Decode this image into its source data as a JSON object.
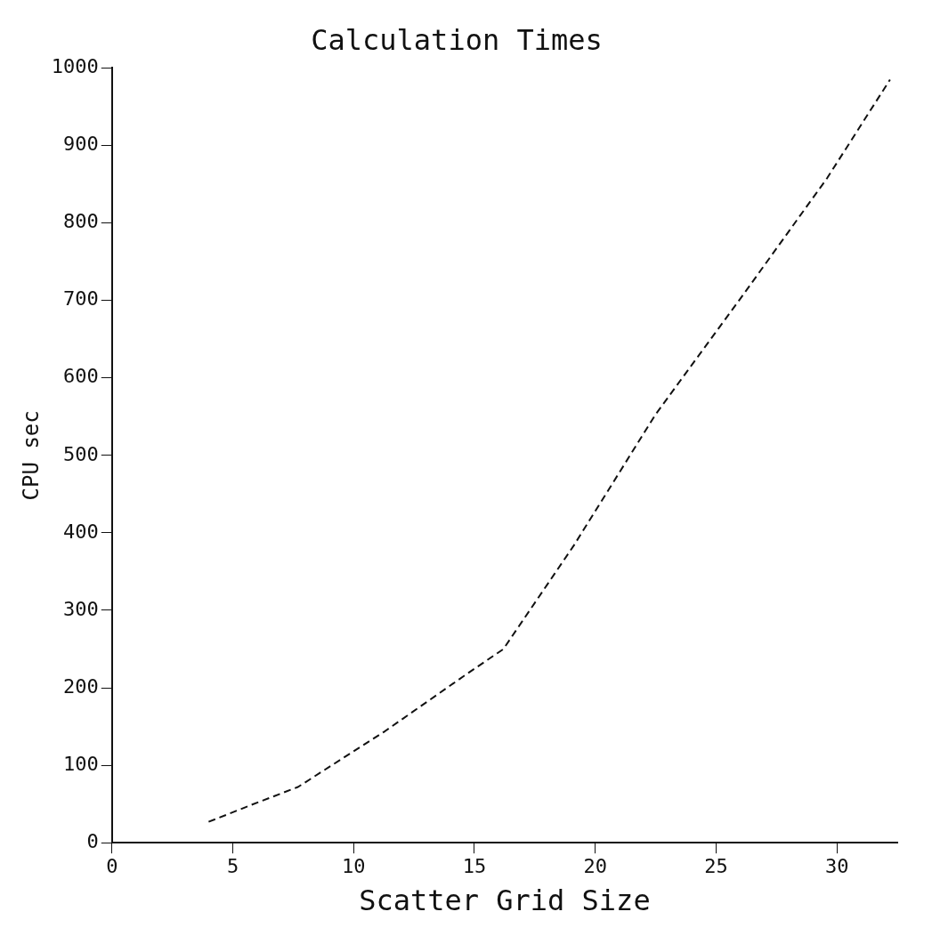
{
  "chart_data": {
    "type": "line",
    "title": "Calculation Times",
    "xlabel": "Scatter Grid Size",
    "ylabel": "CPU sec",
    "series": [
      {
        "color": "#111111",
        "x": [
          4,
          5.7,
          7.7,
          11.3,
          14.6,
          16.2,
          19.1,
          22.5,
          26,
          29.6,
          32.2
        ],
        "values": [
          27,
          48,
          72,
          144,
          216,
          250,
          383,
          553,
          702,
          858,
          985
        ]
      }
    ],
    "xlim": [
      0,
      32.5
    ],
    "xticks": [
      0,
      5,
      10,
      15,
      20,
      25,
      30
    ],
    "ylim": [
      0,
      1000
    ],
    "yticks": [
      0,
      100,
      200,
      300,
      400,
      500,
      600,
      700,
      800,
      900,
      1000
    ],
    "grid": false,
    "legend": false,
    "marker": "none",
    "line_style": "dashed"
  }
}
